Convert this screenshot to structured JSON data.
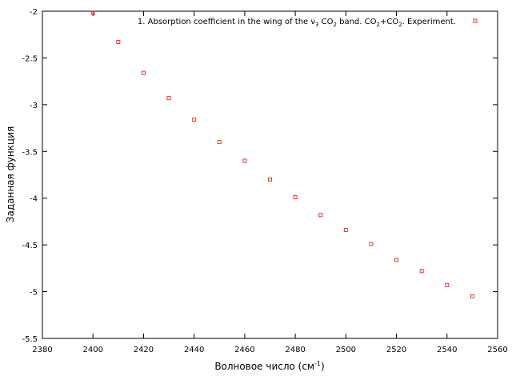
{
  "chart_data": {
    "type": "scatter",
    "xlabel": "Волновое число (см",
    "xlabel_sup": "-1",
    "xlabel_tail": ")",
    "ylabel": "Заданная функция",
    "xlim": [
      2380,
      2560
    ],
    "ylim": [
      -5.5,
      -2
    ],
    "x_ticks": [
      2380,
      2400,
      2420,
      2440,
      2460,
      2480,
      2500,
      2520,
      2540,
      2560
    ],
    "y_ticks": [
      -2,
      -2.5,
      -3,
      -3.5,
      -4,
      -4.5,
      -5,
      -5.5
    ],
    "x_tick_labels": [
      "2380",
      "2400",
      "2420",
      "2440",
      "2460",
      "2480",
      "2500",
      "2520",
      "2540",
      "2560"
    ],
    "y_tick_labels": [
      "-2",
      "-2.5",
      "-3",
      "-3.5",
      "-4",
      "-4.5",
      "-5",
      "-5.5"
    ],
    "grid": false,
    "legend_position": "top-right",
    "legend": {
      "p1": "1. Absorption coefficient in the wing of the ν",
      "sub1": "3",
      "p2": " CO",
      "sub2": "2",
      "p3": " band. CO",
      "sub3": "2",
      "p4": "+CO",
      "sub4": "2",
      "p5": ". Experiment."
    },
    "marker_color": "#e8392a",
    "series": [
      {
        "x": [
          2400,
          2410,
          2420,
          2430,
          2440,
          2450,
          2460,
          2470,
          2480,
          2490,
          2500,
          2510,
          2520,
          2530,
          2540,
          2550
        ],
        "y": [
          -2.02,
          -2.33,
          -2.66,
          -2.93,
          -3.16,
          -3.4,
          -3.6,
          -3.8,
          -3.99,
          -4.18,
          -4.34,
          -4.49,
          -4.66,
          -4.78,
          -4.93,
          -5.05
        ]
      }
    ]
  }
}
